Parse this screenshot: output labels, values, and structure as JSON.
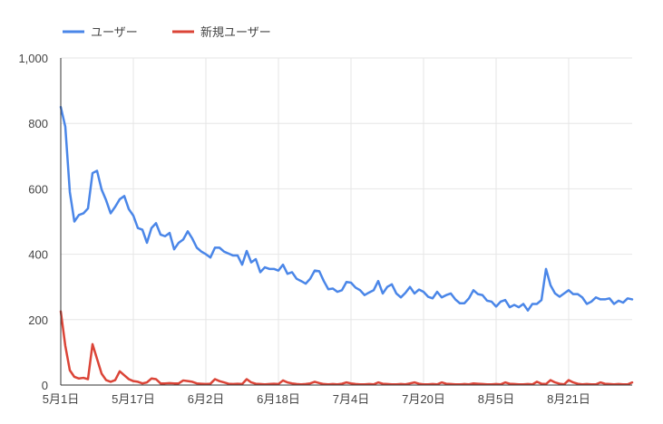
{
  "chart_data": {
    "type": "line",
    "title": "",
    "xlabel": "",
    "ylabel": "",
    "ylim": [
      0,
      1000
    ],
    "grid": true,
    "legend_position": "top-left",
    "y_ticks": [
      0,
      200,
      400,
      600,
      800,
      1000
    ],
    "y_tick_labels": [
      "0",
      "200",
      "400",
      "600",
      "800",
      "1,000"
    ],
    "x_ticks": [
      {
        "index": 0,
        "label": "5月1日"
      },
      {
        "index": 16,
        "label": "5月17日"
      },
      {
        "index": 32,
        "label": "6月2日"
      },
      {
        "index": 48,
        "label": "6月18日"
      },
      {
        "index": 64,
        "label": "7月4日"
      },
      {
        "index": 80,
        "label": "7月20日"
      },
      {
        "index": 96,
        "label": "8月5日"
      },
      {
        "index": 112,
        "label": "8月21日"
      }
    ],
    "point_count": 127,
    "series": [
      {
        "name": "ユーザー",
        "color": "#4a86e8",
        "values": [
          850,
          790,
          590,
          500,
          520,
          525,
          540,
          648,
          655,
          598,
          565,
          525,
          545,
          568,
          578,
          538,
          518,
          480,
          475,
          435,
          480,
          495,
          460,
          455,
          465,
          415,
          435,
          445,
          470,
          448,
          420,
          408,
          400,
          390,
          420,
          420,
          408,
          402,
          396,
          396,
          368,
          410,
          375,
          385,
          345,
          360,
          355,
          355,
          350,
          368,
          340,
          345,
          325,
          318,
          310,
          325,
          350,
          348,
          318,
          293,
          295,
          285,
          290,
          315,
          313,
          298,
          290,
          275,
          283,
          290,
          318,
          280,
          300,
          308,
          280,
          268,
          282,
          300,
          280,
          292,
          285,
          270,
          265,
          285,
          268,
          275,
          280,
          262,
          250,
          250,
          265,
          290,
          278,
          275,
          258,
          255,
          240,
          255,
          260,
          238,
          245,
          238,
          248,
          228,
          248,
          248,
          260,
          355,
          305,
          280,
          270,
          280,
          290,
          278,
          278,
          268,
          248,
          255,
          268,
          262,
          262,
          265,
          248,
          258,
          252,
          265,
          262
        ]
      },
      {
        "name": "新規ユーザー",
        "color": "#db4437",
        "values": [
          225,
          120,
          45,
          25,
          20,
          22,
          18,
          125,
          80,
          35,
          15,
          10,
          15,
          42,
          30,
          18,
          12,
          10,
          5,
          8,
          20,
          18,
          5,
          5,
          6,
          5,
          5,
          14,
          12,
          10,
          5,
          4,
          3,
          4,
          18,
          12,
          8,
          4,
          3,
          4,
          3,
          18,
          8,
          4,
          3,
          2,
          3,
          4,
          3,
          14,
          8,
          5,
          3,
          2,
          3,
          5,
          10,
          6,
          3,
          2,
          3,
          2,
          4,
          8,
          5,
          3,
          2,
          2,
          3,
          2,
          8,
          4,
          3,
          2,
          2,
          3,
          2,
          5,
          8,
          4,
          2,
          2,
          3,
          2,
          8,
          4,
          3,
          2,
          2,
          3,
          2,
          5,
          4,
          3,
          2,
          2,
          3,
          2,
          8,
          4,
          3,
          2,
          2,
          3,
          2,
          10,
          4,
          3,
          15,
          8,
          4,
          2,
          15,
          8,
          4,
          2,
          3,
          2,
          2,
          8,
          4,
          3,
          2,
          3,
          2,
          2,
          8
        ]
      }
    ]
  }
}
